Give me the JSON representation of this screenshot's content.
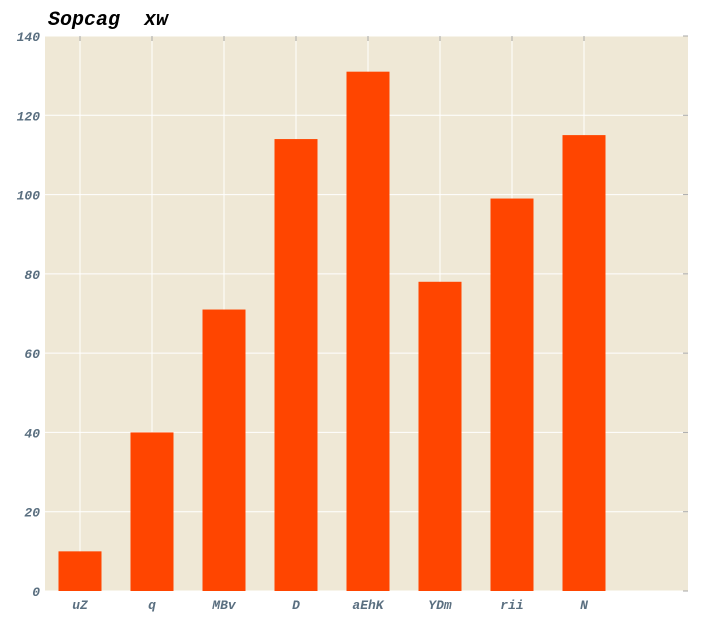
{
  "chart_data": {
    "type": "bar",
    "title": "Sopcag  xw",
    "xlabel": "",
    "ylabel": "",
    "categories": [
      "uZ",
      "q",
      "MBv",
      "D",
      "aEhK",
      "YDm",
      "rii",
      "N"
    ],
    "values": [
      10,
      40,
      71,
      114,
      131,
      78,
      99,
      115
    ],
    "ylim": [
      0,
      140
    ],
    "yticks": [
      0,
      20,
      40,
      60,
      80,
      100,
      120,
      140
    ],
    "grid": true,
    "legend": "none",
    "colors": {
      "bar": "#ff4500",
      "plot_background": "#efe8d6",
      "grid": "#ffffff",
      "tick_label": "#5a6f80",
      "title": "#000000"
    }
  }
}
